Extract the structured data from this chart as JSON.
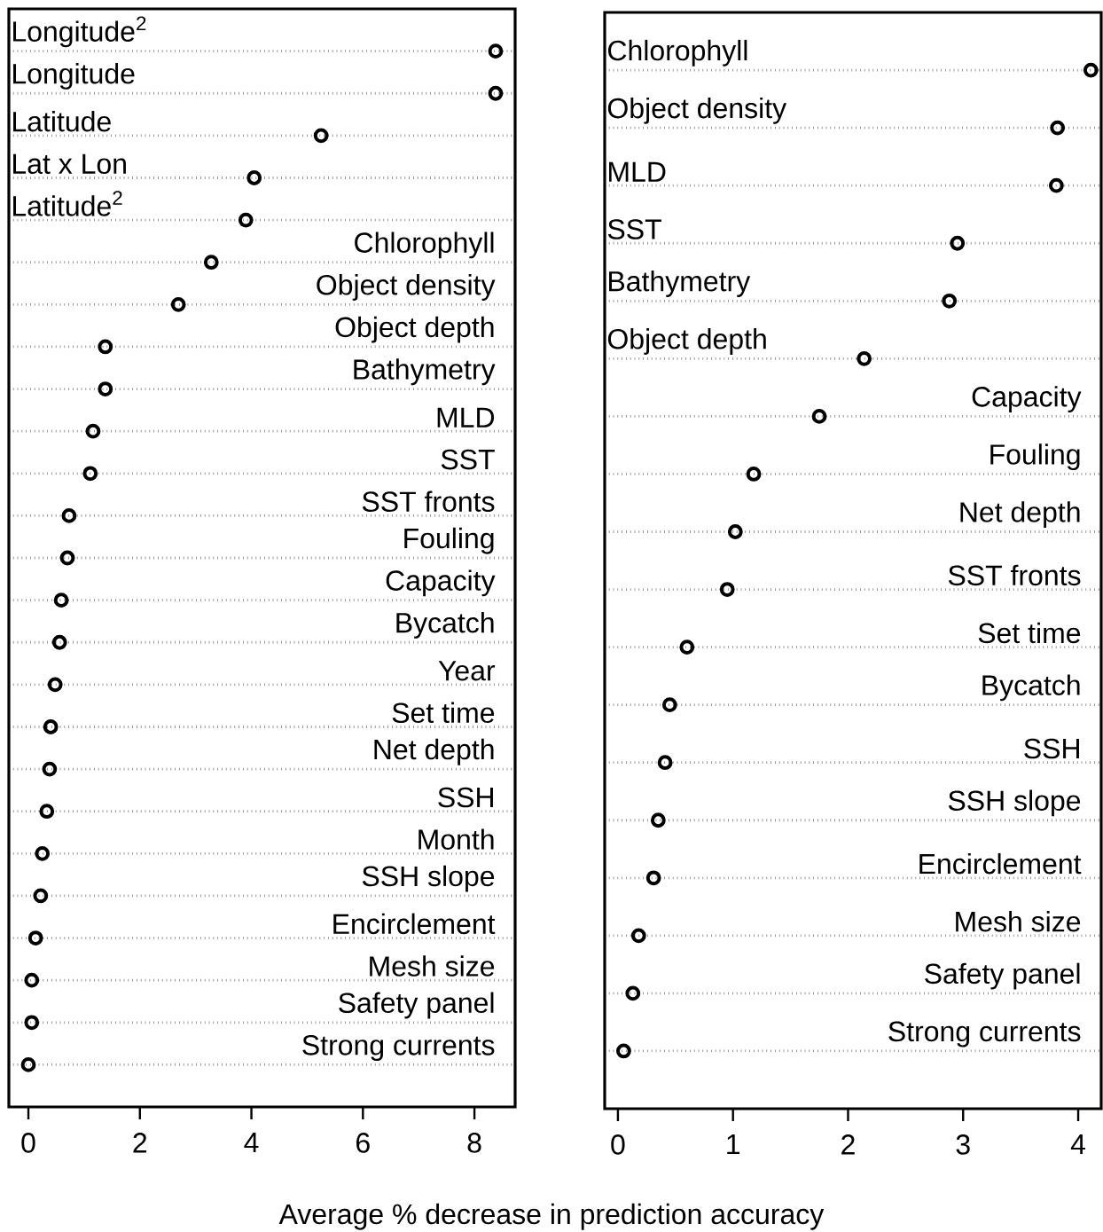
{
  "chart_data": [
    {
      "type": "scatter",
      "orientation": "horizontal",
      "marker": "circle",
      "color": "#000000",
      "grid": "y",
      "tick_labels": "x",
      "xlabel": "Average % decrease in prediction accuracy",
      "categories": [
        "Longitude$^{2}$",
        "Longitude",
        "Latitude",
        "Lat x Lon",
        "Latitude$^{2}$",
        "Chlorophyll",
        "Object density",
        "Object depth",
        "Bathymetry",
        "MLD",
        "SST",
        "SST fronts",
        "Fouling",
        "Capacity",
        "Bycatch",
        "Year",
        "Set time",
        "Net depth",
        "SSH",
        "Month",
        "SSH slope",
        "Encirclement",
        "Mesh size",
        "Safety panel",
        "Strong currents"
      ],
      "values": [
        8.38,
        8.38,
        5.25,
        4.05,
        3.9,
        3.28,
        2.69,
        1.38,
        1.38,
        1.16,
        1.11,
        0.73,
        0.7,
        0.59,
        0.56,
        0.48,
        0.4,
        0.38,
        0.33,
        0.25,
        0.22,
        0.13,
        0.06,
        0.06,
        0.0
      ],
      "xlim": [
        -0.35,
        8.73
      ],
      "xticks": [
        0,
        2,
        4,
        6,
        8
      ]
    },
    {
      "type": "scatter",
      "orientation": "horizontal",
      "marker": "circle",
      "color": "#000000",
      "grid": "y",
      "tick_labels": "x",
      "categories": [
        "Chlorophyll",
        "Object density",
        "MLD",
        "SST",
        "Bathymetry",
        "Object depth",
        "Capacity",
        "Fouling",
        "Net depth",
        "SST fronts",
        "Set time",
        "Bycatch",
        "SSH",
        "SSH slope",
        "Encirclement",
        "Mesh size",
        "Safety panel",
        "Strong currents"
      ],
      "values": [
        4.11,
        3.82,
        3.81,
        2.95,
        2.88,
        2.14,
        1.75,
        1.18,
        1.02,
        0.95,
        0.6,
        0.45,
        0.41,
        0.35,
        0.31,
        0.18,
        0.13,
        0.05
      ],
      "xlim": [
        -0.115,
        4.2
      ],
      "xticks": [
        0,
        1,
        2,
        3,
        4
      ]
    }
  ]
}
